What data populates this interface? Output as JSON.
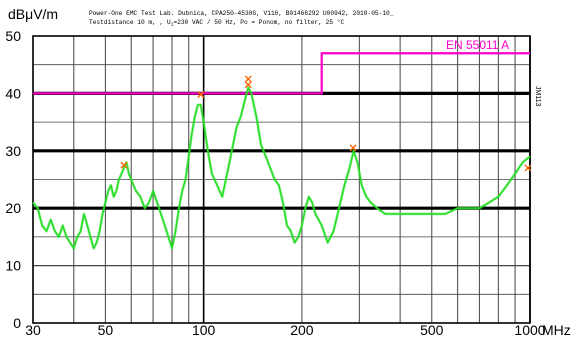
{
  "chart_data": {
    "type": "line",
    "title_line1": "Power-One EMC Test Lab. Dubnica, CPA250-4530G, V116, B01466292 U00942, 2010-05-10_",
    "title_line2_prefix": "Testdistance 10 m, , U",
    "title_line2_sub": "i",
    "title_line2_suffix": "=230 VAC / 50 Hz, Po = Ponom, no filter, 25 °C",
    "ylabel": "dBμV/m",
    "xlabel": "MHz",
    "side_label": "JM113",
    "x_scale": "log",
    "xlim": [
      30,
      1000
    ],
    "ylim": [
      0,
      50
    ],
    "y_ticks": [
      0,
      10,
      20,
      30,
      40,
      50
    ],
    "y_tick_labels": [
      "0",
      "10",
      "20",
      "30",
      "40",
      "50"
    ],
    "x_ticks": [
      30,
      50,
      100,
      200,
      500,
      1000
    ],
    "x_tick_labels": [
      "30",
      "50",
      "100",
      "200",
      "500",
      "1000"
    ],
    "grid": true,
    "colors": {
      "measurement": "#22dd22",
      "limit": "#ff00cc",
      "markers": "#ff6600",
      "grid": "#555555",
      "grid_bold": "#000000"
    },
    "limit_line": {
      "name": "EN 55011 A",
      "points": [
        [
          30,
          40
        ],
        [
          230,
          40
        ],
        [
          230,
          47
        ],
        [
          1000,
          47
        ]
      ]
    },
    "series": [
      {
        "values": [
          [
            30,
            21
          ],
          [
            31,
            20
          ],
          [
            32,
            17
          ],
          [
            33,
            16
          ],
          [
            34,
            18
          ],
          [
            35,
            16
          ],
          [
            36,
            15
          ],
          [
            37,
            17
          ],
          [
            38,
            15
          ],
          [
            39,
            14
          ],
          [
            40,
            13
          ],
          [
            41,
            15
          ],
          [
            42,
            16
          ],
          [
            43,
            19
          ],
          [
            44,
            17
          ],
          [
            45,
            15
          ],
          [
            46,
            13
          ],
          [
            47,
            14
          ],
          [
            48,
            16
          ],
          [
            49,
            19
          ],
          [
            50,
            21
          ],
          [
            51,
            23
          ],
          [
            52,
            24
          ],
          [
            53,
            22
          ],
          [
            54,
            23
          ],
          [
            55,
            25
          ],
          [
            56,
            26
          ],
          [
            57,
            27
          ],
          [
            58,
            28
          ],
          [
            59,
            26
          ],
          [
            60,
            25
          ],
          [
            62,
            23
          ],
          [
            64,
            22
          ],
          [
            66,
            20
          ],
          [
            68,
            21
          ],
          [
            70,
            23
          ],
          [
            72,
            21
          ],
          [
            74,
            19
          ],
          [
            76,
            17
          ],
          [
            78,
            15
          ],
          [
            80,
            13
          ],
          [
            82,
            16
          ],
          [
            84,
            20
          ],
          [
            86,
            23
          ],
          [
            88,
            25
          ],
          [
            90,
            29
          ],
          [
            92,
            33
          ],
          [
            94,
            36
          ],
          [
            96,
            38
          ],
          [
            98,
            38
          ],
          [
            100,
            35
          ],
          [
            103,
            30
          ],
          [
            106,
            26
          ],
          [
            110,
            24
          ],
          [
            114,
            22
          ],
          [
            118,
            26
          ],
          [
            122,
            30
          ],
          [
            126,
            34
          ],
          [
            130,
            36
          ],
          [
            134,
            39
          ],
          [
            137,
            41
          ],
          [
            140,
            40
          ],
          [
            145,
            36
          ],
          [
            150,
            31
          ],
          [
            155,
            29
          ],
          [
            160,
            27
          ],
          [
            165,
            25
          ],
          [
            170,
            24
          ],
          [
            175,
            21
          ],
          [
            180,
            17
          ],
          [
            185,
            16
          ],
          [
            190,
            14
          ],
          [
            195,
            15
          ],
          [
            200,
            17
          ],
          [
            205,
            20
          ],
          [
            210,
            22
          ],
          [
            215,
            21
          ],
          [
            220,
            19
          ],
          [
            225,
            18
          ],
          [
            230,
            17
          ],
          [
            240,
            14
          ],
          [
            250,
            16
          ],
          [
            260,
            20
          ],
          [
            270,
            24
          ],
          [
            280,
            27
          ],
          [
            288,
            30
          ],
          [
            296,
            28
          ],
          [
            305,
            24
          ],
          [
            315,
            22
          ],
          [
            325,
            21
          ],
          [
            340,
            20
          ],
          [
            360,
            19
          ],
          [
            380,
            19
          ],
          [
            400,
            19
          ],
          [
            430,
            19
          ],
          [
            460,
            19
          ],
          [
            500,
            19
          ],
          [
            550,
            19
          ],
          [
            600,
            20
          ],
          [
            650,
            20
          ],
          [
            700,
            20
          ],
          [
            750,
            21
          ],
          [
            800,
            22
          ],
          [
            850,
            24
          ],
          [
            900,
            26
          ],
          [
            950,
            28
          ],
          [
            1000,
            29
          ]
        ]
      }
    ],
    "peak_markers": [
      [
        57,
        27.5
      ],
      [
        98,
        39.8
      ],
      [
        137,
        42.5
      ],
      [
        137,
        41.5
      ],
      [
        287,
        30.5
      ],
      [
        1000,
        27
      ]
    ]
  }
}
